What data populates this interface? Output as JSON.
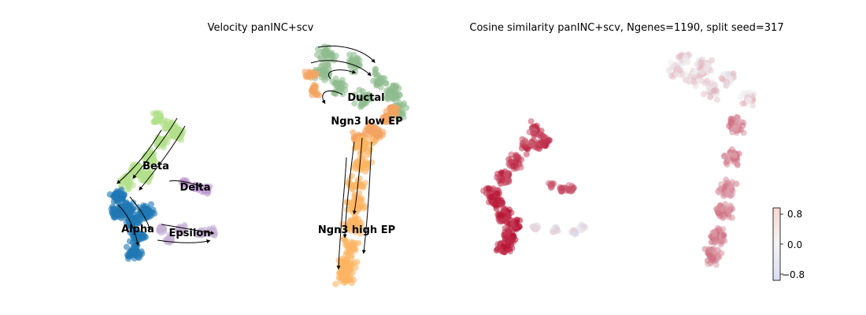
{
  "chart_data": [
    {
      "type": "scatter",
      "title": "Velocity panINC+scv",
      "clusters": [
        {
          "name": "Ductal",
          "color": "#8fbc8f"
        },
        {
          "name": "Ngn3 low EP",
          "color": "#f4a460"
        },
        {
          "name": "Ngn3 high EP",
          "color": "#fdb462"
        },
        {
          "name": "Beta",
          "color": "#b2df8a"
        },
        {
          "name": "Delta",
          "color": "#bc9ad1"
        },
        {
          "name": "Alpha",
          "color": "#1f78b4"
        },
        {
          "name": "Epsilon",
          "color": "#c7b3d6"
        }
      ],
      "streamlines": true,
      "axes_visible": false
    },
    {
      "type": "scatter",
      "title": "Cosine similarity panINC+scv, Ngenes=1190, split seed=317",
      "colormap": [
        "#3b4cc0",
        "#f2f2f2",
        "#b40426"
      ],
      "colorbar": {
        "range": [
          -1.0,
          1.0
        ],
        "ticks": [
          "0.8",
          "0.0",
          "−0.8"
        ]
      },
      "axes_visible": false
    }
  ]
}
